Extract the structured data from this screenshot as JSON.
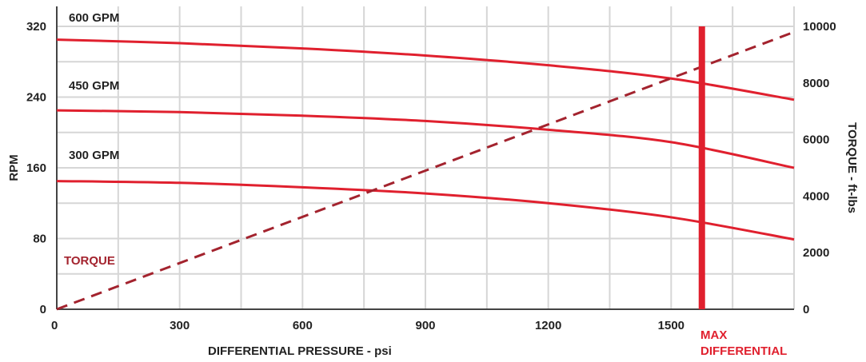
{
  "chart_data": {
    "type": "line",
    "xlabel": "DIFFERENTIAL PRESSURE - psi",
    "ylabel": "RPM",
    "y2label": "TORQUE - ft-lbs",
    "xlim": [
      0,
      1800
    ],
    "ylim": [
      0,
      320
    ],
    "y2lim": [
      0,
      10000
    ],
    "x_ticks": [
      0,
      300,
      600,
      900,
      1200,
      1500
    ],
    "y_ticks": [
      0,
      80,
      160,
      240,
      320
    ],
    "y2_ticks": [
      0,
      2000,
      4000,
      6000,
      8000,
      10000
    ],
    "grid": true,
    "colors": {
      "rpm": "#e0202e",
      "torque": "#a3232e",
      "marker": "#e0202e",
      "grid": "#d6d6d6"
    },
    "series": [
      {
        "name": "600 GPM",
        "axis": "left",
        "x": [
          0,
          300,
          600,
          900,
          1200,
          1500,
          1800
        ],
        "values": [
          305,
          301,
          295,
          287,
          276,
          261,
          237
        ]
      },
      {
        "name": "450 GPM",
        "axis": "left",
        "x": [
          0,
          300,
          600,
          900,
          1200,
          1500,
          1800
        ],
        "values": [
          225,
          223,
          219,
          213,
          203,
          189,
          160
        ]
      },
      {
        "name": "300 GPM",
        "axis": "left",
        "x": [
          0,
          300,
          600,
          900,
          1200,
          1500,
          1800
        ],
        "values": [
          145,
          143,
          138,
          131,
          120,
          104,
          79
        ]
      },
      {
        "name": "TORQUE",
        "axis": "right",
        "style": "dashed",
        "x": [
          0,
          1800
        ],
        "values": [
          0,
          9800
        ]
      }
    ],
    "marker": {
      "x": 1575,
      "label_line1": "MAX",
      "label_line2": "DIFFERENTIAL"
    }
  }
}
